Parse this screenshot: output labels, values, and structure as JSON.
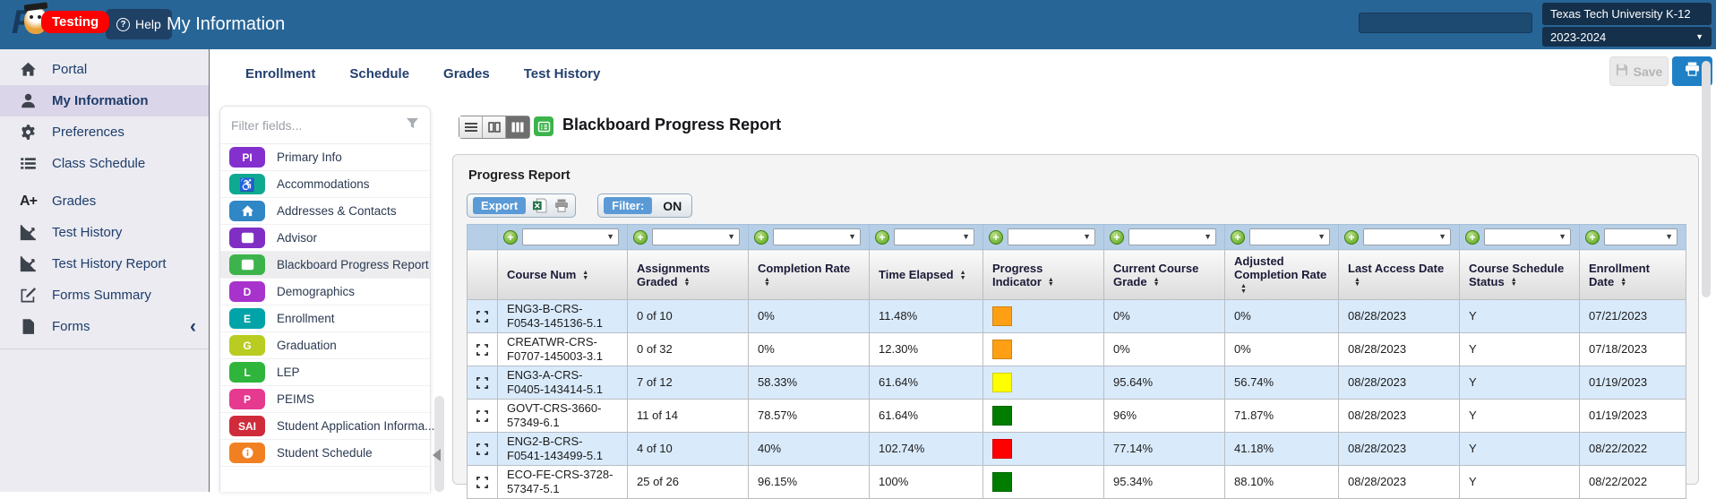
{
  "topbar": {
    "title": "My Information",
    "logo_badge": "Testing",
    "help_label": "Help",
    "district": "Texas Tech University K-12",
    "school_year": "2023-2024",
    "search_value": ""
  },
  "actions": {
    "save_label": "Save"
  },
  "icons": {
    "caret_down": "▼",
    "sort_asc": "▲",
    "sort_desc": "▼",
    "plus": "+",
    "chevron_left": "‹",
    "help": "?",
    "a_plus": "A+",
    "wheelchair": "♿"
  },
  "sidebar": {
    "items": [
      {
        "label": "Portal",
        "icon": "home-icon"
      },
      {
        "label": "My Information",
        "icon": "person-icon",
        "selected": true
      },
      {
        "label": "Preferences",
        "icon": "gear-icon"
      },
      {
        "label": "Class Schedule",
        "icon": "list-icon"
      },
      {
        "label": "Grades",
        "icon": "a-plus-icon",
        "group_start": true
      },
      {
        "label": "Test History",
        "icon": "chart-icon"
      },
      {
        "label": "Test History Report",
        "icon": "chart-icon"
      },
      {
        "label": "Forms Summary",
        "icon": "edit-icon"
      },
      {
        "label": "Forms",
        "icon": "file-icon",
        "collapse_chevron": true
      }
    ]
  },
  "field_panel": {
    "filter_placeholder": "Filter fields...",
    "items": [
      {
        "label": "Primary Info",
        "badge_text": "PI",
        "badge_color": "#8430ce"
      },
      {
        "label": "Accommodations",
        "badge_icon": "wheelchair-icon",
        "badge_color": "#0fa992"
      },
      {
        "label": "Addresses & Contacts",
        "badge_icon": "home-icon",
        "badge_color": "#2f87c5"
      },
      {
        "label": "Advisor",
        "badge_icon": "list-box-icon",
        "badge_color": "#7f2fc4"
      },
      {
        "label": "Blackboard Progress Report",
        "badge_icon": "list-box-icon",
        "badge_color": "#3cb44b",
        "selected": true
      },
      {
        "label": "Demographics",
        "badge_text": "D",
        "badge_color": "#a833cc"
      },
      {
        "label": "Enrollment",
        "badge_text": "E",
        "badge_color": "#00a4a8"
      },
      {
        "label": "Graduation",
        "badge_text": "G",
        "badge_color": "#b8cc21"
      },
      {
        "label": "LEP",
        "badge_text": "L",
        "badge_color": "#2fb53c"
      },
      {
        "label": "PEIMS",
        "badge_text": "P",
        "badge_color": "#e53a90"
      },
      {
        "label": "Student Application Informa...",
        "badge_text": "SAI",
        "badge_color": "#d02b3a"
      },
      {
        "label": "Student Schedule",
        "badge_icon": "info-icon",
        "badge_color": "#f08021"
      }
    ]
  },
  "tabs": [
    {
      "label": "Enrollment"
    },
    {
      "label": "Schedule"
    },
    {
      "label": "Grades"
    },
    {
      "label": "Test History"
    }
  ],
  "report": {
    "title": "Blackboard Progress Report",
    "panel_title": "Progress Report",
    "export_label": "Export",
    "filter_label": "Filter:",
    "filter_state": "ON",
    "columns": [
      {
        "key": "course_num",
        "label": "Course Num"
      },
      {
        "key": "assignments_graded",
        "label": "Assignments Graded"
      },
      {
        "key": "completion_rate",
        "label": "Completion Rate"
      },
      {
        "key": "time_elapsed",
        "label": "Time Elapsed"
      },
      {
        "key": "progress_indicator",
        "label": "Progress Indicator",
        "type": "color"
      },
      {
        "key": "current_course_grade",
        "label": "Current Course Grade"
      },
      {
        "key": "adjusted_completion_rate",
        "label": "Adjusted Completion Rate"
      },
      {
        "key": "last_access_date",
        "label": "Last Access Date"
      },
      {
        "key": "course_schedule_status",
        "label": "Course Schedule Status"
      },
      {
        "key": "enrollment_date",
        "label": "Enrollment Date"
      }
    ],
    "indicator_colors": {
      "orange": "#ffa014",
      "yellow": "#ffff00",
      "green": "#007d00",
      "red": "#ff0000"
    },
    "rows": [
      {
        "course_num": "ENG3-B-CRS-F0543-145136-5.1",
        "assignments_graded": "0 of 10",
        "completion_rate": "0%",
        "time_elapsed": "11.48%",
        "progress_indicator": "orange",
        "current_course_grade": "0%",
        "adjusted_completion_rate": "0%",
        "last_access_date": "08/28/2023",
        "course_schedule_status": "Y",
        "enrollment_date": "07/21/2023"
      },
      {
        "course_num": "CREATWR-CRS-F0707-145003-3.1",
        "assignments_graded": "0 of 32",
        "completion_rate": "0%",
        "time_elapsed": "12.30%",
        "progress_indicator": "orange",
        "current_course_grade": "0%",
        "adjusted_completion_rate": "0%",
        "last_access_date": "08/28/2023",
        "course_schedule_status": "Y",
        "enrollment_date": "07/18/2023"
      },
      {
        "course_num": "ENG3-A-CRS-F0405-143414-5.1",
        "assignments_graded": "7 of 12",
        "completion_rate": "58.33%",
        "time_elapsed": "61.64%",
        "progress_indicator": "yellow",
        "current_course_grade": "95.64%",
        "adjusted_completion_rate": "56.74%",
        "last_access_date": "08/28/2023",
        "course_schedule_status": "Y",
        "enrollment_date": "01/19/2023"
      },
      {
        "course_num": "GOVT-CRS-3660-57349-6.1",
        "assignments_graded": "11 of 14",
        "completion_rate": "78.57%",
        "time_elapsed": "61.64%",
        "progress_indicator": "green",
        "current_course_grade": "96%",
        "adjusted_completion_rate": "71.87%",
        "last_access_date": "08/28/2023",
        "course_schedule_status": "Y",
        "enrollment_date": "01/19/2023"
      },
      {
        "course_num": "ENG2-B-CRS-F0541-143499-5.1",
        "assignments_graded": "4 of 10",
        "completion_rate": "40%",
        "time_elapsed": "102.74%",
        "progress_indicator": "red",
        "current_course_grade": "77.14%",
        "adjusted_completion_rate": "41.18%",
        "last_access_date": "08/28/2023",
        "course_schedule_status": "Y",
        "enrollment_date": "08/22/2022"
      },
      {
        "course_num": "ECO-FE-CRS-3728-57347-5.1",
        "assignments_graded": "25 of 26",
        "completion_rate": "96.15%",
        "time_elapsed": "100%",
        "progress_indicator": "green",
        "current_course_grade": "95.34%",
        "adjusted_completion_rate": "88.10%",
        "last_access_date": "08/28/2023",
        "course_schedule_status": "Y",
        "enrollment_date": "08/22/2022"
      }
    ]
  }
}
